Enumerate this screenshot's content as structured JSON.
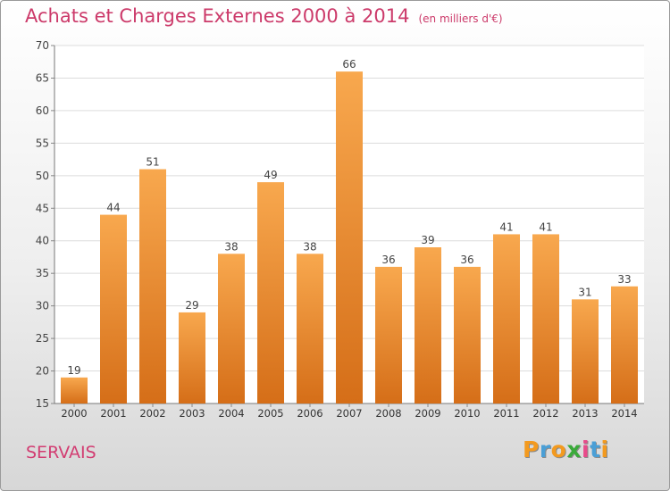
{
  "chart_data": {
    "type": "bar",
    "title": "Achats et Charges Externes 2000 à 2014",
    "subtitle": "(en milliers d'€)",
    "categories": [
      "2000",
      "2001",
      "2002",
      "2003",
      "2004",
      "2005",
      "2006",
      "2007",
      "2008",
      "2009",
      "2010",
      "2011",
      "2012",
      "2013",
      "2014"
    ],
    "values": [
      19,
      44,
      51,
      29,
      38,
      49,
      38,
      66,
      36,
      39,
      36,
      41,
      41,
      31,
      33
    ],
    "ylim": [
      15,
      70
    ],
    "yticks": [
      15,
      20,
      25,
      30,
      35,
      40,
      45,
      50,
      55,
      60,
      65,
      70
    ],
    "grid": true,
    "bar_color": "#f09a40",
    "data_labels": true
  },
  "commune": "SERVAIS",
  "logo": {
    "text": "Proxiti",
    "letters": [
      "P",
      "r",
      "o",
      "x",
      "i",
      "t",
      "i"
    ],
    "colors": [
      "#f39a1f",
      "#4a9fd6",
      "#f39a1f",
      "#3aaa3a",
      "#e84a8a",
      "#4a9fd6",
      "#f39a1f"
    ]
  }
}
